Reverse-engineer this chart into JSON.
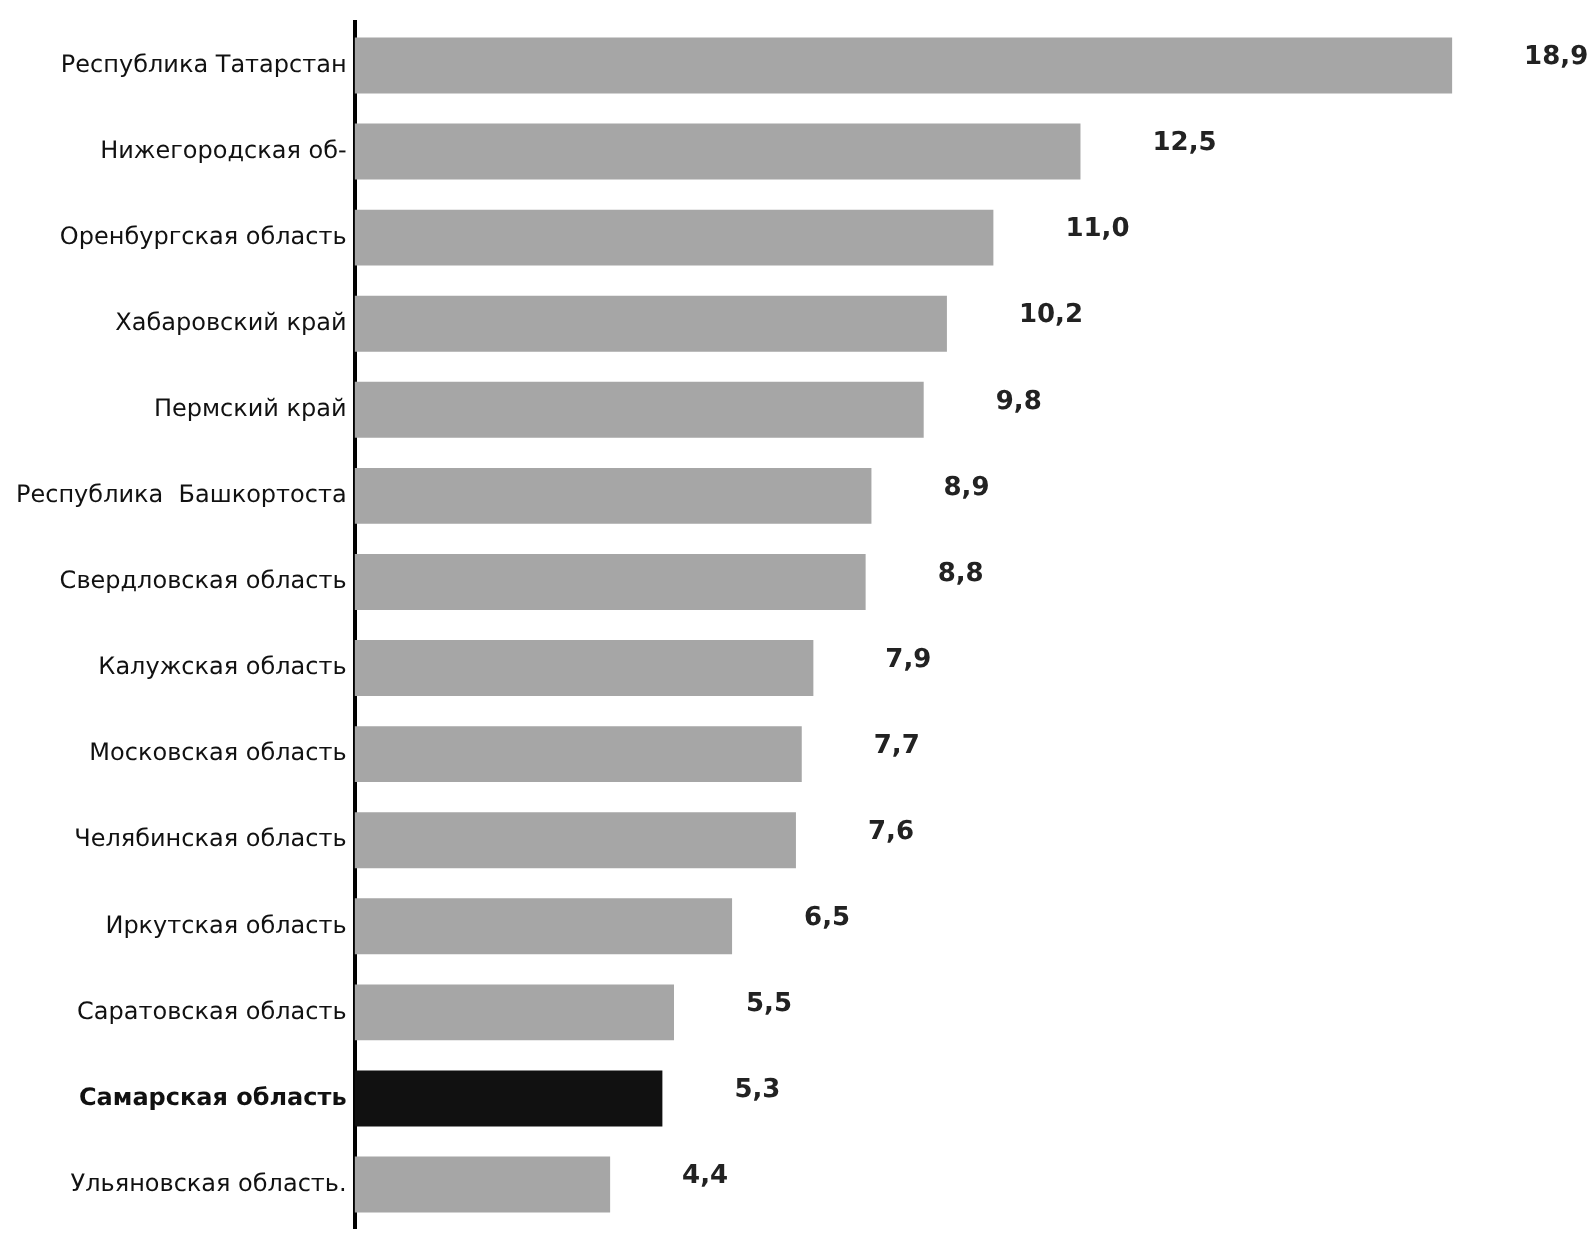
{
  "chart_data": {
    "type": "bar",
    "orientation": "horizontal",
    "categories": [
      "Республика Татарстан",
      "Нижегородская об-",
      "Оренбургская область",
      "Хабаровский край",
      "Пермский край",
      "Республика  Башкортоста",
      "Свердловская область",
      "Калужская область",
      "Московская область",
      "Челябинская область",
      "Иркутская область",
      "Саратовская область",
      "Самарская область",
      "Ульяновская область."
    ],
    "values": [
      18.9,
      12.5,
      11.0,
      10.2,
      9.8,
      8.9,
      8.8,
      7.9,
      7.7,
      7.6,
      6.5,
      5.5,
      5.3,
      4.4
    ],
    "value_labels": [
      "18,9",
      "12,5",
      "11,0",
      "10,2",
      "9,8",
      "8,9",
      "8,8",
      "7,9",
      "7,7",
      "7,6",
      "6,5",
      "5,5",
      "5,3",
      "4,4"
    ],
    "colors": [
      "#a6a6a6",
      "#a6a6a6",
      "#a6a6a6",
      "#a6a6a6",
      "#a6a6a6",
      "#a6a6a6",
      "#a6a6a6",
      "#a6a6a6",
      "#a6a6a6",
      "#a6a6a6",
      "#a6a6a6",
      "#a6a6a6",
      "#111111",
      "#a6a6a6"
    ],
    "tick_labels": "y",
    "grid": false,
    "legend": false
  }
}
